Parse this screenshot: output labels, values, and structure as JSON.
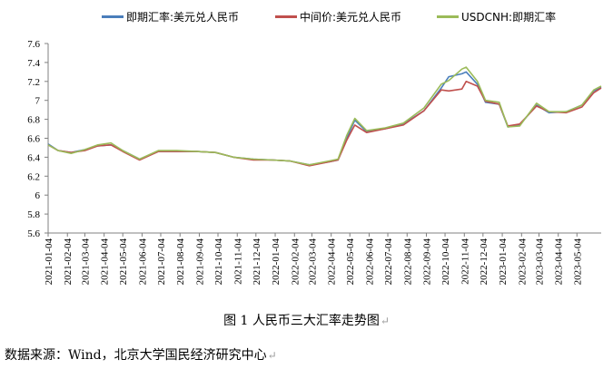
{
  "chart_data": {
    "type": "line",
    "title": "",
    "xlabel": "",
    "ylabel": "",
    "ylim": [
      5.6,
      7.6
    ],
    "yticks": [
      "7.6",
      "7.4",
      "7.2",
      "7",
      "6.8",
      "6.6",
      "6.4",
      "6.2",
      "6",
      "5.8",
      "5.6"
    ],
    "xlim": [
      "2021-01-04",
      "2023-06-12"
    ],
    "xticks": [
      "2021-01-04",
      "2021-02-04",
      "2021-03-04",
      "2021-04-04",
      "2021-05-04",
      "2021-06-04",
      "2021-07-04",
      "2021-08-04",
      "2021-09-04",
      "2021-10-04",
      "2021-11-04",
      "2021-12-04",
      "2022-01-04",
      "2022-02-04",
      "2022-03-04",
      "2022-04-04",
      "2022-05-04",
      "2022-06-04",
      "2022-07-04",
      "2022-08-04",
      "2022-09-04",
      "2022-10-04",
      "2022-11-04",
      "2022-12-04",
      "2023-01-04",
      "2023-02-04",
      "2023-03-04",
      "2023-04-04",
      "2023-05-04"
    ],
    "grid": false,
    "legend_position": "top",
    "series": [
      {
        "name": "即期汇率:美元兑人民币",
        "color": "#4a7ebb",
        "points": [
          [
            "2021-01-04",
            6.54
          ],
          [
            "2021-01-20",
            6.47
          ],
          [
            "2021-02-10",
            6.45
          ],
          [
            "2021-03-04",
            6.48
          ],
          [
            "2021-03-25",
            6.52
          ],
          [
            "2021-04-15",
            6.53
          ],
          [
            "2021-05-04",
            6.47
          ],
          [
            "2021-05-31",
            6.38
          ],
          [
            "2021-06-30",
            6.46
          ],
          [
            "2021-07-30",
            6.46
          ],
          [
            "2021-08-31",
            6.46
          ],
          [
            "2021-09-30",
            6.45
          ],
          [
            "2021-10-29",
            6.4
          ],
          [
            "2021-11-30",
            6.38
          ],
          [
            "2021-12-31",
            6.37
          ],
          [
            "2022-01-28",
            6.36
          ],
          [
            "2022-02-28",
            6.32
          ],
          [
            "2022-03-31",
            6.35
          ],
          [
            "2022-04-15",
            6.37
          ],
          [
            "2022-04-29",
            6.6
          ],
          [
            "2022-05-12",
            6.79
          ],
          [
            "2022-05-31",
            6.67
          ],
          [
            "2022-06-30",
            6.7
          ],
          [
            "2022-07-29",
            6.75
          ],
          [
            "2022-08-31",
            6.89
          ],
          [
            "2022-09-28",
            7.13
          ],
          [
            "2022-10-10",
            7.25
          ],
          [
            "2022-10-31",
            7.28
          ],
          [
            "2022-11-07",
            7.3
          ],
          [
            "2022-11-25",
            7.17
          ],
          [
            "2022-12-08",
            6.98
          ],
          [
            "2022-12-30",
            6.96
          ],
          [
            "2023-01-13",
            6.72
          ],
          [
            "2023-02-01",
            6.74
          ],
          [
            "2023-02-28",
            6.95
          ],
          [
            "2023-03-20",
            6.87
          ],
          [
            "2023-04-17",
            6.88
          ],
          [
            "2023-05-12",
            6.95
          ],
          [
            "2023-05-31",
            7.1
          ],
          [
            "2023-06-12",
            7.14
          ]
        ]
      },
      {
        "name": "中间价:美元兑人民币",
        "color": "#c0504d",
        "points": [
          [
            "2021-01-04",
            6.53
          ],
          [
            "2021-01-20",
            6.47
          ],
          [
            "2021-02-10",
            6.45
          ],
          [
            "2021-03-04",
            6.47
          ],
          [
            "2021-03-25",
            6.52
          ],
          [
            "2021-04-15",
            6.53
          ],
          [
            "2021-05-04",
            6.46
          ],
          [
            "2021-05-31",
            6.37
          ],
          [
            "2021-06-30",
            6.46
          ],
          [
            "2021-07-30",
            6.46
          ],
          [
            "2021-08-31",
            6.46
          ],
          [
            "2021-09-30",
            6.45
          ],
          [
            "2021-10-29",
            6.4
          ],
          [
            "2021-11-30",
            6.37
          ],
          [
            "2021-12-31",
            6.37
          ],
          [
            "2022-01-28",
            6.36
          ],
          [
            "2022-02-28",
            6.31
          ],
          [
            "2022-03-31",
            6.35
          ],
          [
            "2022-04-15",
            6.37
          ],
          [
            "2022-04-29",
            6.58
          ],
          [
            "2022-05-12",
            6.74
          ],
          [
            "2022-05-31",
            6.66
          ],
          [
            "2022-06-30",
            6.7
          ],
          [
            "2022-07-29",
            6.74
          ],
          [
            "2022-08-31",
            6.89
          ],
          [
            "2022-09-28",
            7.11
          ],
          [
            "2022-10-10",
            7.1
          ],
          [
            "2022-10-31",
            7.12
          ],
          [
            "2022-11-07",
            7.2
          ],
          [
            "2022-11-25",
            7.15
          ],
          [
            "2022-12-08",
            6.99
          ],
          [
            "2022-12-30",
            6.96
          ],
          [
            "2023-01-13",
            6.73
          ],
          [
            "2023-02-01",
            6.75
          ],
          [
            "2023-02-28",
            6.94
          ],
          [
            "2023-03-20",
            6.88
          ],
          [
            "2023-04-17",
            6.87
          ],
          [
            "2023-05-12",
            6.93
          ],
          [
            "2023-05-31",
            7.08
          ],
          [
            "2023-06-12",
            7.13
          ]
        ]
      },
      {
        "name": "USDCNH:即期汇率",
        "color": "#9bbb59",
        "points": [
          [
            "2021-01-04",
            6.53
          ],
          [
            "2021-01-20",
            6.47
          ],
          [
            "2021-02-10",
            6.44
          ],
          [
            "2021-03-04",
            6.48
          ],
          [
            "2021-03-25",
            6.53
          ],
          [
            "2021-04-15",
            6.55
          ],
          [
            "2021-05-04",
            6.47
          ],
          [
            "2021-05-31",
            6.38
          ],
          [
            "2021-06-30",
            6.47
          ],
          [
            "2021-07-30",
            6.47
          ],
          [
            "2021-08-31",
            6.46
          ],
          [
            "2021-09-30",
            6.45
          ],
          [
            "2021-10-29",
            6.4
          ],
          [
            "2021-11-30",
            6.38
          ],
          [
            "2021-12-31",
            6.37
          ],
          [
            "2022-01-28",
            6.36
          ],
          [
            "2022-02-28",
            6.32
          ],
          [
            "2022-03-31",
            6.36
          ],
          [
            "2022-04-15",
            6.38
          ],
          [
            "2022-04-29",
            6.63
          ],
          [
            "2022-05-12",
            6.81
          ],
          [
            "2022-05-31",
            6.68
          ],
          [
            "2022-06-30",
            6.71
          ],
          [
            "2022-07-29",
            6.76
          ],
          [
            "2022-08-31",
            6.92
          ],
          [
            "2022-09-28",
            7.17
          ],
          [
            "2022-10-10",
            7.21
          ],
          [
            "2022-10-31",
            7.33
          ],
          [
            "2022-11-07",
            7.35
          ],
          [
            "2022-11-25",
            7.2
          ],
          [
            "2022-12-08",
            7.0
          ],
          [
            "2022-12-30",
            6.98
          ],
          [
            "2023-01-13",
            6.72
          ],
          [
            "2023-02-01",
            6.73
          ],
          [
            "2023-02-28",
            6.97
          ],
          [
            "2023-03-20",
            6.88
          ],
          [
            "2023-04-17",
            6.88
          ],
          [
            "2023-05-12",
            6.95
          ],
          [
            "2023-05-31",
            7.11
          ],
          [
            "2023-06-12",
            7.15
          ]
        ]
      }
    ]
  },
  "figure": {
    "caption": "图 1 人民币三大汇率走势图",
    "source": "数据来源：Wind，北京大学国民经济研究中心",
    "paragraph_mark": "↵"
  }
}
